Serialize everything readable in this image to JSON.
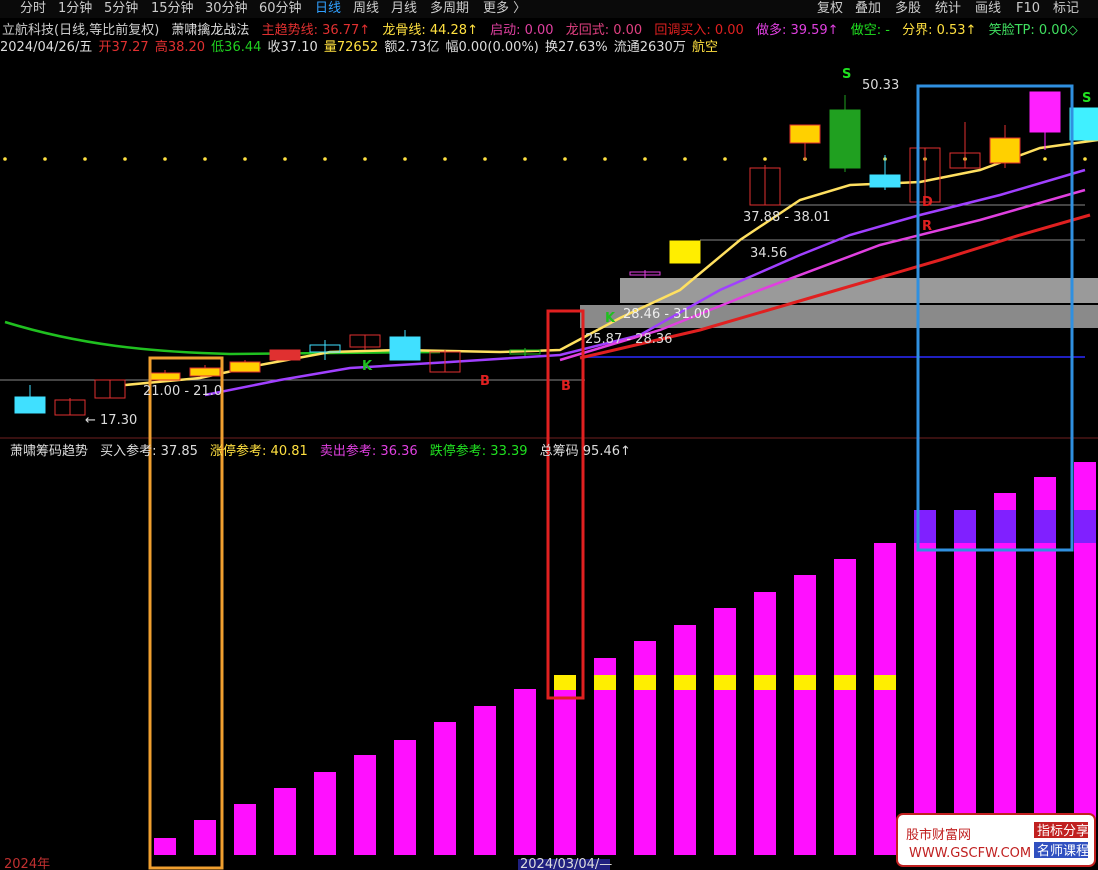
{
  "toolbar": {
    "left": [
      "分时",
      "1分钟",
      "5分钟",
      "15分钟",
      "30分钟",
      "60分钟",
      "日线",
      "周线",
      "月线",
      "多周期",
      "更多 〉"
    ],
    "right": [
      "复权",
      "叠加",
      "多股",
      "统计",
      "画线",
      "F10",
      "标记"
    ]
  },
  "indicator_line": [
    "立航科技(日线,等比前复权)",
    "萧啸擒龙战法",
    "主趋势线: 36.77↑",
    "龙骨线: 44.28↑",
    "启动: 0.00",
    "龙回式: 0.00",
    "回调买入: 0.00",
    "做多: 39.59↑",
    "做空: -",
    "分界: 0.53↑",
    "笑脸TP: 0.00◇"
  ],
  "quote_line": [
    "2024/04/26/五",
    "开37.27",
    "高38.20",
    "低36.44",
    "收37.10",
    "量72652",
    "额2.73亿",
    "幅0.00(0.00%)",
    "换27.63%",
    "流通2630万",
    "航空"
  ],
  "price_labels": [
    "50.33",
    "37.88 - 38.01",
    "34.56",
    "28.46 - 31.00",
    "25.87 - 28.36",
    "21.00 - 21.0",
    "← 17.30"
  ],
  "signals": [
    "S",
    "S",
    "K",
    "K",
    "B",
    "B",
    "D",
    "R"
  ],
  "chip_panel": {
    "title": "萧啸筹码趋势",
    "items": [
      "买入参考: 37.85",
      "涨停参考: 40.81",
      "卖出参考: 36.36",
      "跌停参考: 33.39",
      "总筹码 95.46↑"
    ]
  },
  "date_axis": [
    "2024年",
    "2024/03/04/—"
  ],
  "watermark": {
    "name": "股市财富网",
    "url": "WWW.GSCFW.COM",
    "tag1": "指标分享",
    "tag2": "名师课程"
  }
}
